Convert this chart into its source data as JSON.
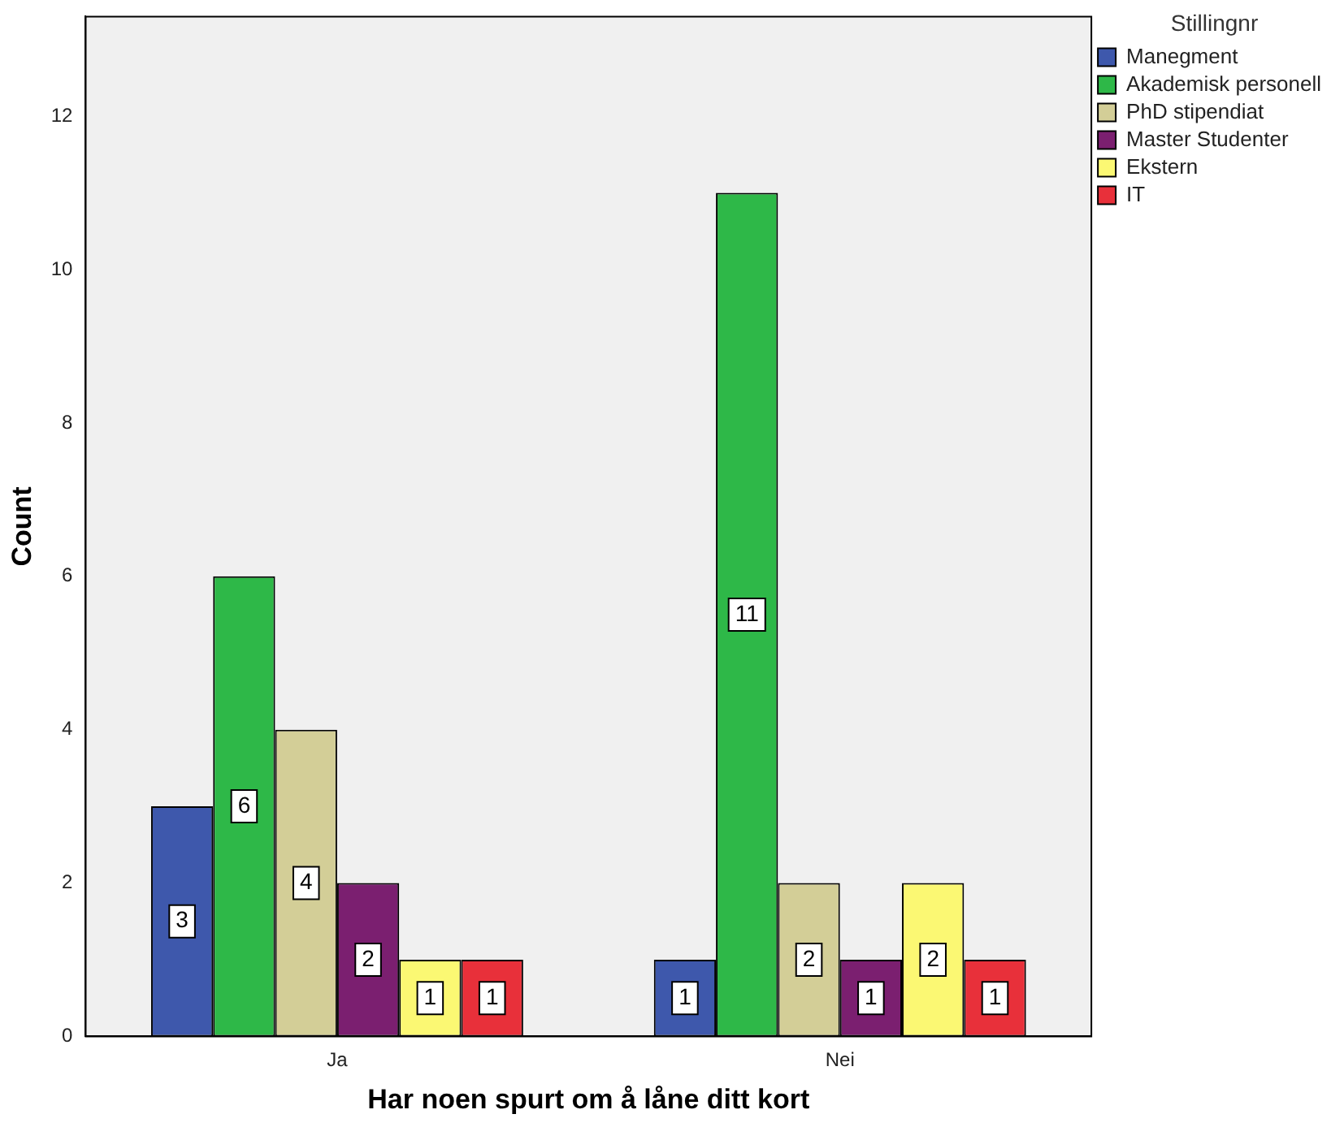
{
  "chart_data": {
    "type": "bar",
    "xlabel": "Har noen spurt om å låne ditt kort",
    "ylabel": "Count",
    "legend_title": "Stillingnr",
    "categories": [
      "Ja",
      "Nei"
    ],
    "series": [
      {
        "name": "Manegment",
        "color": "#3e58ac",
        "values": [
          3,
          1
        ]
      },
      {
        "name": "Akademisk personell",
        "color": "#2eb848",
        "values": [
          6,
          11
        ]
      },
      {
        "name": "PhD stipendiat",
        "color": "#d3ce97",
        "values": [
          4,
          2
        ]
      },
      {
        "name": "Master Studenter",
        "color": "#7b1f70",
        "values": [
          2,
          1
        ]
      },
      {
        "name": "Ekstern",
        "color": "#fbf873",
        "values": [
          1,
          2
        ]
      },
      {
        "name": "IT",
        "color": "#e8303a",
        "values": [
          1,
          1
        ]
      }
    ],
    "ylim": [
      0,
      13.3
    ],
    "yticks": [
      0,
      2,
      4,
      6,
      8,
      10,
      12
    ],
    "grid": false,
    "legend": "top right",
    "data_labels": true
  }
}
